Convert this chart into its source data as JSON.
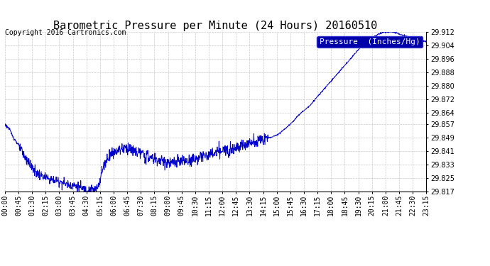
{
  "title": "Barometric Pressure per Minute (24 Hours) 20160510",
  "copyright": "Copyright 2016 Cartronics.com",
  "legend_label": "Pressure  (Inches/Hg)",
  "line_color": "#0000CC",
  "background_color": "#ffffff",
  "grid_color": "#aaaaaa",
  "ylim": [
    29.817,
    29.912
  ],
  "yticks": [
    29.817,
    29.825,
    29.833,
    29.841,
    29.849,
    29.857,
    29.864,
    29.872,
    29.88,
    29.888,
    29.896,
    29.904,
    29.912
  ],
  "xtick_labels": [
    "00:00",
    "00:45",
    "01:30",
    "02:15",
    "03:00",
    "03:45",
    "04:30",
    "05:15",
    "06:00",
    "06:45",
    "07:30",
    "08:15",
    "09:00",
    "09:45",
    "10:30",
    "11:15",
    "12:00",
    "12:45",
    "13:30",
    "14:15",
    "15:00",
    "15:45",
    "16:30",
    "17:15",
    "18:00",
    "18:45",
    "19:30",
    "20:15",
    "21:00",
    "21:45",
    "22:30",
    "23:15"
  ],
  "title_fontsize": 11,
  "tick_fontsize": 7,
  "legend_fontsize": 8,
  "copyright_fontsize": 7,
  "key_minutes": [
    0,
    5,
    15,
    30,
    45,
    60,
    75,
    90,
    110,
    130,
    160,
    190,
    220,
    250,
    260,
    280,
    300,
    315,
    330,
    345,
    360,
    375,
    390,
    405,
    420,
    440,
    460,
    480,
    500,
    520,
    540,
    560,
    580,
    600,
    620,
    640,
    660,
    680,
    700,
    720,
    740,
    760,
    780,
    800,
    820,
    840,
    860,
    880,
    900,
    920,
    940,
    960,
    980,
    1000,
    1020,
    1040,
    1060,
    1080,
    1100,
    1120,
    1140,
    1160,
    1180,
    1200,
    1220,
    1240,
    1260,
    1280,
    1300,
    1320,
    1360,
    1400,
    1439
  ],
  "key_values": [
    29.857,
    29.856,
    29.854,
    29.849,
    29.845,
    29.84,
    29.836,
    29.832,
    29.828,
    29.826,
    29.824,
    29.823,
    29.821,
    29.82,
    29.819,
    29.818,
    29.818,
    29.819,
    29.828,
    29.835,
    29.839,
    29.841,
    29.842,
    29.843,
    29.843,
    29.841,
    29.84,
    29.838,
    29.837,
    29.836,
    29.835,
    29.834,
    29.834,
    29.835,
    29.835,
    29.836,
    29.837,
    29.838,
    29.839,
    29.84,
    29.841,
    29.842,
    29.843,
    29.844,
    29.845,
    29.846,
    29.847,
    29.848,
    29.849,
    29.85,
    29.852,
    29.855,
    29.858,
    29.862,
    29.865,
    29.868,
    29.872,
    29.876,
    29.88,
    29.884,
    29.888,
    29.892,
    29.896,
    29.9,
    29.904,
    29.907,
    29.909,
    29.911,
    29.912,
    29.912,
    29.91,
    29.908,
    29.906
  ]
}
